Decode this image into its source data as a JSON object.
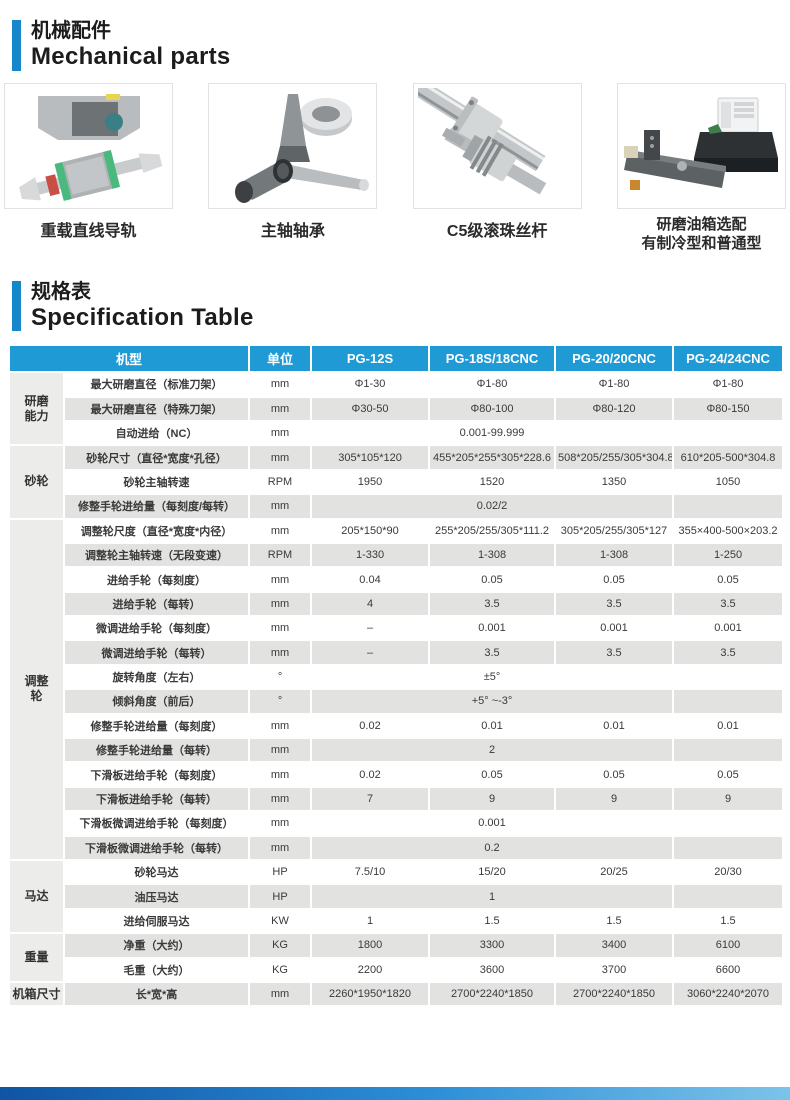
{
  "colors": {
    "accent_blue": "#1688C9",
    "table_header_blue": "#1F9AD5",
    "row_stripe_gray": "#E2E2E0",
    "group_cell_gray": "#ECECEA",
    "footer_gradient_left": "#0F55A4",
    "footer_gradient_right": "#7CC3EA"
  },
  "mechanical_parts": {
    "title_zh": "机械配件",
    "title_en": "Mechanical parts",
    "products": [
      {
        "label_lines": [
          "重载直线导轨"
        ]
      },
      {
        "label_lines": [
          "主轴轴承"
        ]
      },
      {
        "label_lines": [
          "C5级滚珠丝杆"
        ]
      },
      {
        "label_lines": [
          "研磨油箱选配",
          "有制冷型和普通型"
        ]
      }
    ]
  },
  "specification": {
    "title_zh": "规格表",
    "title_en": "Specification Table",
    "table": {
      "header": {
        "model": "机型",
        "unit": "单位",
        "models": [
          "PG-12S",
          "PG-18S/18CNC",
          "PG-20/20CNC",
          "PG-24/24CNC"
        ]
      },
      "groups": [
        {
          "label": "研磨\n能力",
          "rows": 3
        },
        {
          "label": "砂轮",
          "rows": 3
        },
        {
          "label": "调整\n轮",
          "rows": 14
        },
        {
          "label": "马达",
          "rows": 3
        },
        {
          "label": "重量",
          "rows": 2
        },
        {
          "label": "机箱尺寸",
          "rows": 1
        }
      ],
      "rows": [
        {
          "name": "最大研磨直径（标准刀架）",
          "unit": "mm",
          "values": [
            "Φ1-30",
            "Φ1-80",
            "Φ1-80",
            "Φ1-80"
          ]
        },
        {
          "name": "最大研磨直径（特殊刀架）",
          "unit": "mm",
          "values": [
            "Φ30-50",
            "Φ80-100",
            "Φ80-120",
            "Φ80-150"
          ]
        },
        {
          "name": "自动进给（NC）",
          "unit": "mm",
          "span": "0.001-99.999"
        },
        {
          "name": "砂轮尺寸（直径*宽度*孔径）",
          "unit": "mm",
          "values": [
            "305*105*120",
            "455*205*255*305*228.6",
            "508*205/255/305*304.8",
            "610*205-500*304.8"
          ]
        },
        {
          "name": "砂轮主轴转速",
          "unit": "RPM",
          "values": [
            "1950",
            "1520",
            "1350",
            "1050"
          ]
        },
        {
          "name": "修整手轮进给量（每刻度/每转）",
          "unit": "mm",
          "span": "0.02/2"
        },
        {
          "name": "调整轮尺度（直径*宽度*内径）",
          "unit": "mm",
          "values": [
            "205*150*90",
            "255*205/255/305*111.2",
            "305*205/255/305*127",
            "355×400-500×203.2"
          ]
        },
        {
          "name": "调整轮主轴转速（无段变速）",
          "unit": "RPM",
          "values": [
            "1-330",
            "1-308",
            "1-308",
            "1-250"
          ]
        },
        {
          "name": "进给手轮（每刻度）",
          "unit": "mm",
          "values": [
            "0.04",
            "0.05",
            "0.05",
            "0.05"
          ]
        },
        {
          "name": "进给手轮（每转）",
          "unit": "mm",
          "values": [
            "4",
            "3.5",
            "3.5",
            "3.5"
          ]
        },
        {
          "name": "微调进给手轮（每刻度）",
          "unit": "mm",
          "values": [
            "–",
            "0.001",
            "0.001",
            "0.001"
          ]
        },
        {
          "name": "微调进给手轮（每转）",
          "unit": "mm",
          "values": [
            "–",
            "3.5",
            "3.5",
            "3.5"
          ]
        },
        {
          "name": "旋转角度（左右）",
          "unit": "°",
          "span": "±5°"
        },
        {
          "name": "倾斜角度（前后）",
          "unit": "°",
          "span": "+5° ~-3°"
        },
        {
          "name": "修整手轮进给量（每刻度）",
          "unit": "mm",
          "values": [
            "0.02",
            "0.01",
            "0.01",
            "0.01"
          ]
        },
        {
          "name": "修整手轮进给量（每转）",
          "unit": "mm",
          "span": "2"
        },
        {
          "name": "下滑板进给手轮（每刻度）",
          "unit": "mm",
          "values": [
            "0.02",
            "0.05",
            "0.05",
            "0.05"
          ]
        },
        {
          "name": "下滑板进给手轮（每转）",
          "unit": "mm",
          "values": [
            "7",
            "9",
            "9",
            "9"
          ]
        },
        {
          "name": "下滑板微调进给手轮（每刻度）",
          "unit": "mm",
          "span": "0.001"
        },
        {
          "name": "下滑板微调进给手轮（每转）",
          "unit": "mm",
          "span": "0.2"
        },
        {
          "name": "砂轮马达",
          "unit": "HP",
          "values": [
            "7.5/10",
            "15/20",
            "20/25",
            "20/30"
          ]
        },
        {
          "name": "油压马达",
          "unit": "HP",
          "span": "1"
        },
        {
          "name": "进给伺服马达",
          "unit": "KW",
          "values": [
            "1",
            "1.5",
            "1.5",
            "1.5"
          ]
        },
        {
          "name": "净重（大约）",
          "unit": "KG",
          "values": [
            "1800",
            "3300",
            "3400",
            "6100"
          ]
        },
        {
          "name": "毛重（大约）",
          "unit": "KG",
          "values": [
            "2200",
            "3600",
            "3700",
            "6600"
          ]
        },
        {
          "name": "长*宽*高",
          "unit": "mm",
          "values": [
            "2260*1950*1820",
            "2700*2240*1850",
            "2700*2240*1850",
            "3060*2240*2070"
          ]
        }
      ]
    }
  }
}
